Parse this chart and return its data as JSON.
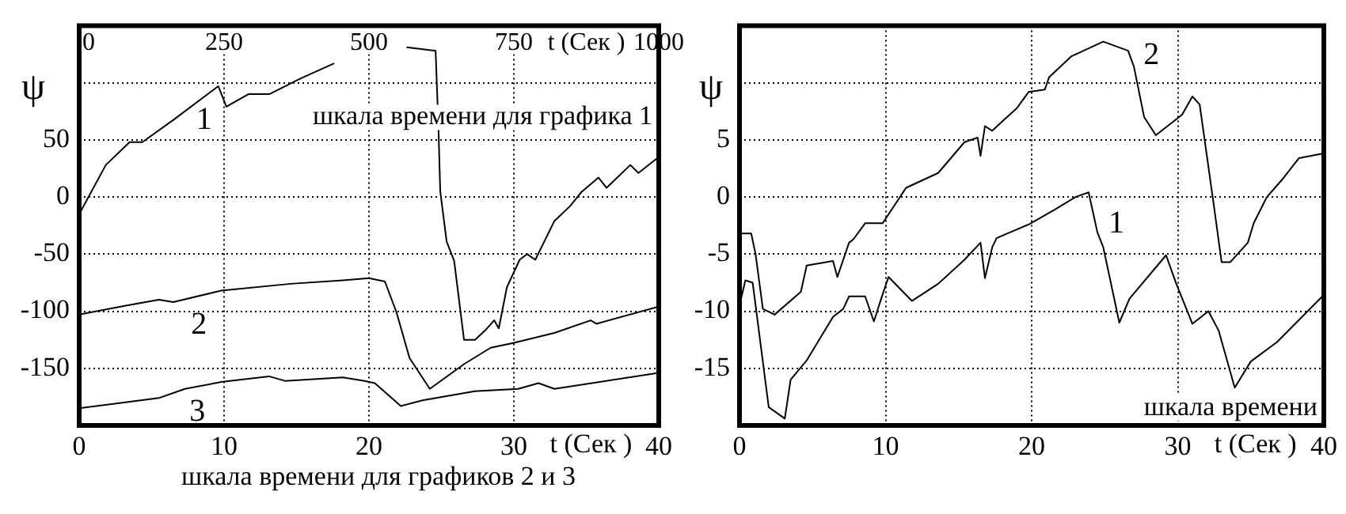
{
  "chart_data": [
    {
      "type": "line",
      "ylabel": "ψ",
      "xlabel": "t (Сек )",
      "x2label": "t (Сек )",
      "xlim": [
        0,
        40
      ],
      "xticks": [
        0,
        10,
        20,
        30,
        40
      ],
      "x2lim": [
        0,
        1000
      ],
      "x2ticks": [
        0,
        250,
        500,
        750,
        1000
      ],
      "ylim": [
        -200,
        150
      ],
      "yticks": [
        {
          "value": 100,
          "label": null
        },
        50,
        0,
        -50,
        -100,
        -150
      ],
      "grid": true,
      "series": [
        {
          "name": "1",
          "color": "#000000",
          "axis": "x2",
          "x": [
            0,
            46,
            87,
            109,
            164,
            240,
            254,
            292,
            328,
            383,
            440,
            500,
            565,
            615,
            620,
            623,
            634,
            647,
            664,
            683,
            702,
            716,
            724,
            738,
            760,
            773,
            787,
            820,
            847,
            866,
            896,
            910,
            951,
            965,
            1000
          ],
          "values": [
            -15,
            28,
            48,
            48,
            68,
            97,
            79,
            90,
            90,
            104,
            117,
            null,
            131,
            128,
            59,
            5,
            -39,
            -56,
            -125,
            -125,
            -116,
            -108,
            -115,
            -79,
            -55,
            -50,
            -55,
            -21,
            -8,
            4,
            17,
            8,
            28,
            21,
            35
          ]
        },
        {
          "name": "2",
          "color": "#000000",
          "x": [
            0,
            3.3,
            5.5,
            6.5,
            9.8,
            14.6,
            18.2,
            20,
            21.1,
            21.9,
            22.8,
            24.2,
            25.5,
            26.6,
            28.4,
            29.9,
            32.8,
            35.3,
            35.7,
            40
          ],
          "values": [
            -103,
            -95,
            -90,
            -92,
            -82,
            -76,
            -73,
            -71,
            -74,
            -101,
            -141,
            -168,
            -156,
            -146,
            -132,
            -128,
            -119,
            -108,
            -111,
            -96
          ]
        },
        {
          "name": "3",
          "color": "#000000",
          "x": [
            0,
            5.5,
            7.3,
            9.8,
            13.1,
            14.2,
            18.2,
            19.7,
            20.4,
            22.2,
            23.7,
            27.3,
            30.3,
            31.7,
            32.8,
            40
          ],
          "values": [
            -185,
            -176,
            -168,
            -162,
            -157,
            -161,
            -158,
            -161,
            -163,
            -183,
            -178,
            -170,
            -168,
            -163,
            -168,
            -154
          ]
        }
      ],
      "annotations": [
        "шкала времени для графика 1",
        "шкала времени для графиков 2 и 3"
      ]
    },
    {
      "type": "line",
      "ylabel": "ψ",
      "xlabel": "t (Сек )",
      "xlim": [
        0,
        40
      ],
      "xticks": [
        0,
        10,
        20,
        30,
        40
      ],
      "ylim": [
        -20,
        15
      ],
      "yticks": [
        {
          "value": 10,
          "label": null
        },
        5,
        0,
        -5,
        -10,
        -15
      ],
      "grid": true,
      "series": [
        {
          "name": "1",
          "color": "#000000",
          "x": [
            0,
            0.4,
            0.9,
            2.0,
            3.1,
            3.5,
            4.6,
            6.4,
            7.1,
            7.5,
            8.6,
            9.2,
            9.7,
            10.2,
            11.8,
            13.6,
            15.4,
            16.5,
            16.8,
            17.3,
            17.6,
            19.8,
            21.6,
            23.0,
            23.9,
            24.5,
            24.9,
            26.0,
            26.7,
            29.2,
            29.9,
            31.0,
            32.1,
            32.8,
            33.9,
            35.0,
            36.8,
            39.9
          ],
          "values": [
            -9.5,
            -7.3,
            -7.5,
            -18.4,
            -19.4,
            -16,
            -14.3,
            -10.5,
            -9.8,
            -8.7,
            -8.7,
            -10.9,
            -8.9,
            -7,
            -9.1,
            -7.6,
            -5.5,
            -4,
            -7.1,
            -4.4,
            -3.6,
            -2.4,
            -1.1,
            0,
            0.4,
            -3.1,
            -4.4,
            -11,
            -8.9,
            -5.1,
            -7.6,
            -11.1,
            -10,
            -11.7,
            -16.7,
            -14.4,
            -12.7,
            -8.7
          ]
        },
        {
          "name": "2",
          "color": "#000000",
          "x": [
            0,
            0.8,
            1.1,
            1.6,
            2.4,
            4.2,
            4.6,
            6.4,
            6.7,
            7.5,
            7.8,
            8.6,
            9.8,
            11.4,
            13.6,
            15.4,
            16.3,
            16.5,
            16.8,
            17.3,
            19.0,
            19.8,
            20.9,
            21.2,
            22.7,
            24.9,
            26.6,
            27.0,
            27.7,
            28.5,
            30.3,
            31.0,
            31.5,
            32.5,
            33.0,
            33.6,
            34.8,
            35.2,
            36.1,
            37.2,
            38.3,
            39.9
          ],
          "values": [
            -3.2,
            -3.2,
            -5,
            -9.8,
            -10.3,
            -8.3,
            -6,
            -5.6,
            -7,
            -4,
            -3.7,
            -2.3,
            -2.3,
            0.8,
            2.1,
            4.8,
            5.2,
            3.6,
            6.2,
            5.8,
            7.8,
            9.2,
            9.4,
            10.5,
            12.3,
            13.6,
            12.8,
            11.4,
            7,
            5.4,
            7.2,
            8.8,
            8.1,
            -1,
            -5.7,
            -5.7,
            -4,
            -2.3,
            0,
            1.6,
            3.4,
            3.8
          ]
        }
      ],
      "annotations": [
        "шкала времени"
      ]
    }
  ]
}
